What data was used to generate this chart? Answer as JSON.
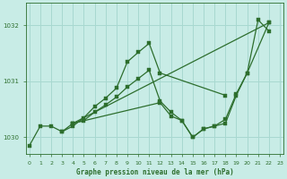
{
  "xlabel": "Graphe pression niveau de la mer (hPa)",
  "background_color": "#c8ece6",
  "grid_color": "#a8d8d0",
  "line_color": "#2d6e2d",
  "ylim": [
    1029.7,
    1032.4
  ],
  "xlim": [
    -0.3,
    23.3
  ],
  "yticks": [
    1030,
    1031,
    1032
  ],
  "xticks": [
    0,
    1,
    2,
    3,
    4,
    5,
    6,
    7,
    8,
    9,
    10,
    11,
    12,
    13,
    14,
    15,
    16,
    17,
    18,
    19,
    20,
    21,
    22,
    23
  ],
  "line1_x": [
    0,
    1,
    2,
    3,
    4,
    5,
    6,
    7,
    8,
    9,
    10,
    11,
    12,
    13,
    14,
    15,
    16,
    17,
    18,
    19,
    20,
    21,
    22
  ],
  "line1_y": [
    1029.85,
    1030.2,
    1030.2,
    1030.1,
    1030.25,
    1030.3,
    1030.45,
    1030.58,
    1030.72,
    1030.9,
    1031.05,
    1031.2,
    1030.65,
    1030.45,
    1030.3,
    1030.0,
    1030.15,
    1030.2,
    1030.25,
    1030.75,
    1031.15,
    1032.1,
    1031.9
  ],
  "line2_x": [
    3,
    4,
    5,
    6,
    7,
    8,
    9,
    10,
    11,
    12,
    18
  ],
  "line2_y": [
    1030.1,
    1030.2,
    1030.35,
    1030.55,
    1030.7,
    1030.88,
    1031.35,
    1031.52,
    1031.68,
    1031.15,
    1030.75
  ],
  "line3_x": [
    4,
    12,
    13,
    14,
    15,
    16,
    17,
    18,
    19,
    20,
    22
  ],
  "line3_y": [
    1030.25,
    1030.62,
    1030.38,
    1030.3,
    1030.0,
    1030.15,
    1030.2,
    1030.32,
    1030.78,
    1031.15,
    1032.05
  ],
  "line4_x": [
    4,
    22
  ],
  "line4_y": [
    1030.25,
    1032.05
  ]
}
